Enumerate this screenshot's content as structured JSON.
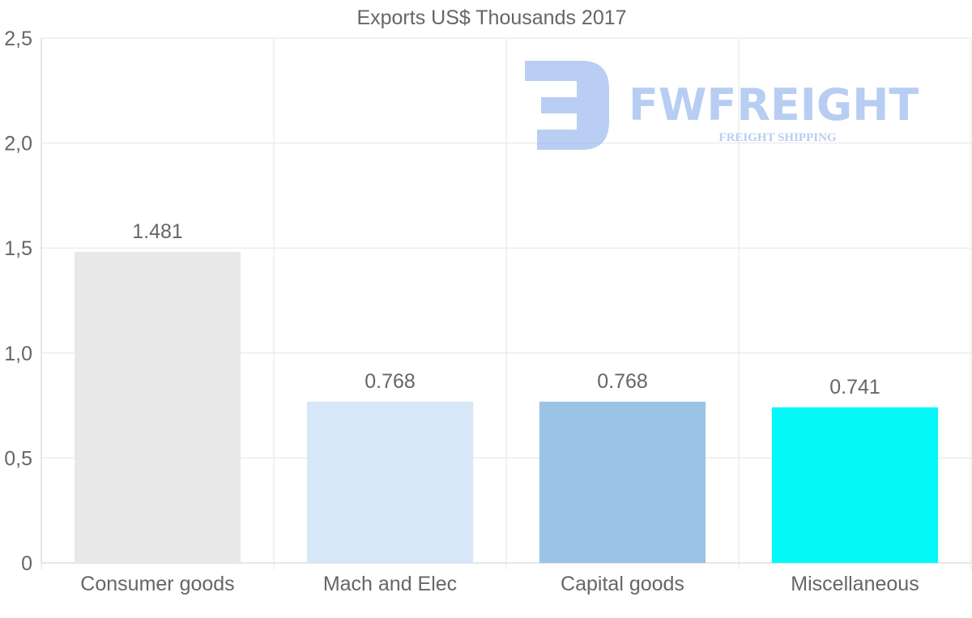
{
  "chart_data": {
    "type": "bar",
    "title": "Exports US$ Thousands 2017",
    "categories": [
      "Consumer goods",
      "Mach and Elec",
      "Capital goods",
      "Miscellaneous"
    ],
    "values": [
      1.481,
      0.768,
      0.768,
      0.741
    ],
    "value_labels": [
      "1.481",
      "0.768",
      "0.768",
      "0.741"
    ],
    "colors": [
      "#e8e8e8",
      "#d6e7f8",
      "#9bc3e6",
      "#05f8f8"
    ],
    "ylim": [
      0,
      2.5
    ],
    "yticks": [
      0,
      0.5,
      1.0,
      1.5,
      2.0,
      2.5
    ],
    "ytick_labels": [
      "0",
      "0,5",
      "1,0",
      "1,5",
      "2,0",
      "2,5"
    ],
    "xlabel": "",
    "ylabel": "",
    "grid": true,
    "legend": "none"
  },
  "watermark": {
    "brand": "FWFREIGHT",
    "tagline": "FREIGHT SHIPPING",
    "color": "#7fa6e8"
  }
}
